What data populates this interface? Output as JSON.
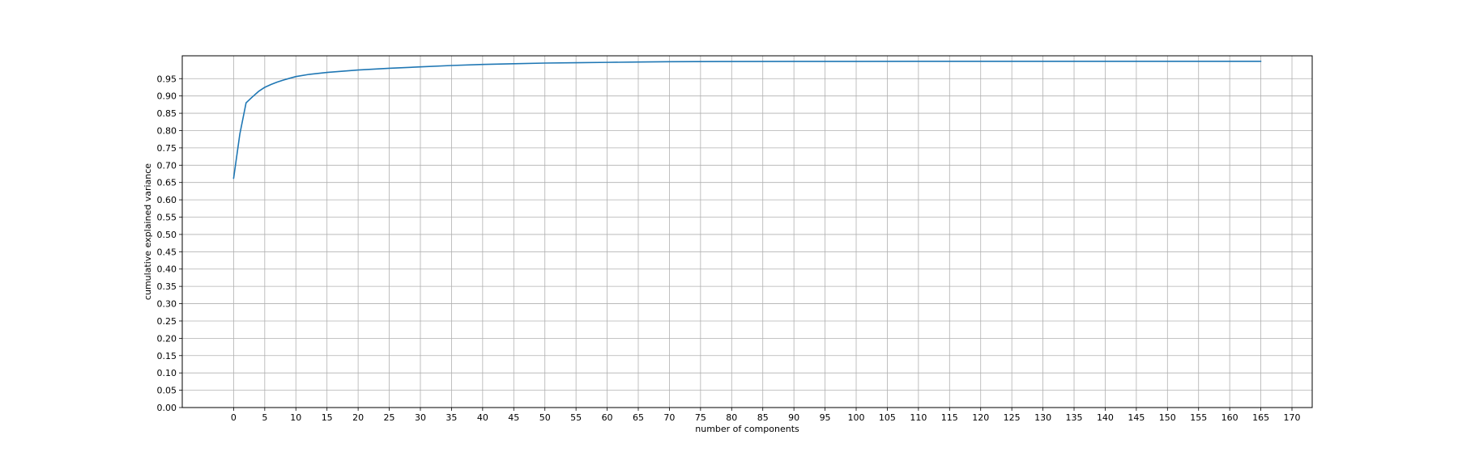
{
  "chart_data": {
    "type": "line",
    "title": "",
    "xlabel": "number of components",
    "ylabel": "cumulative explained variance",
    "xlim": [
      -8.25,
      173.25
    ],
    "ylim": [
      0,
      1.016
    ],
    "x_ticks": [
      0,
      5,
      10,
      15,
      20,
      25,
      30,
      35,
      40,
      45,
      50,
      55,
      60,
      65,
      70,
      75,
      80,
      85,
      90,
      95,
      100,
      105,
      110,
      115,
      120,
      125,
      130,
      135,
      140,
      145,
      150,
      155,
      160,
      165,
      170
    ],
    "y_ticks": [
      0.0,
      0.05,
      0.1,
      0.15,
      0.2,
      0.25,
      0.3,
      0.35,
      0.4,
      0.45,
      0.5,
      0.55,
      0.6,
      0.65,
      0.7,
      0.75,
      0.8,
      0.85,
      0.9,
      0.95
    ],
    "grid": true,
    "legend": "none",
    "series": [
      {
        "color": "#1f77b4",
        "x": [
          0,
          1,
          2,
          3,
          4,
          5,
          6,
          7,
          8,
          9,
          10,
          12,
          15,
          20,
          25,
          30,
          35,
          40,
          45,
          50,
          55,
          60,
          65,
          70,
          80,
          90,
          100,
          110,
          120,
          130,
          140,
          150,
          160,
          165
        ],
        "y": [
          0.662,
          0.79,
          0.88,
          0.897,
          0.913,
          0.925,
          0.933,
          0.94,
          0.946,
          0.951,
          0.956,
          0.962,
          0.968,
          0.975,
          0.98,
          0.984,
          0.988,
          0.991,
          0.993,
          0.995,
          0.996,
          0.997,
          0.998,
          0.999,
          0.9995,
          0.9998,
          0.9999,
          1.0,
          1.0,
          1.0,
          1.0,
          1.0,
          1.0,
          1.0
        ]
      }
    ]
  }
}
